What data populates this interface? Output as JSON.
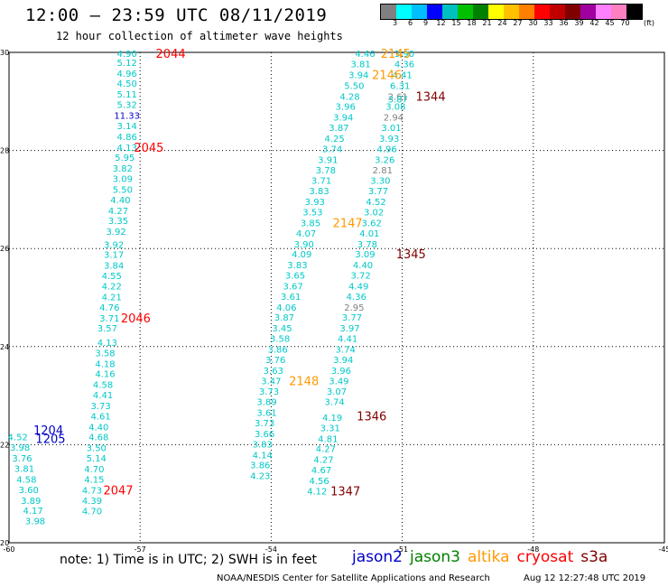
{
  "header": {
    "title": "12:00 – 23:59 UTC 08/11/2019",
    "subtitle": "12 hour collection of altimeter wave heights"
  },
  "legend": {
    "colors": [
      "#808080",
      "#00ffff",
      "#00bfff",
      "#0000ff",
      "#00c0c0",
      "#00c000",
      "#008000",
      "#ffff00",
      "#ffc000",
      "#ff8000",
      "#ff0000",
      "#c00000",
      "#800000",
      "#a000a0",
      "#ff80ff",
      "#ff80c0",
      "#000000"
    ],
    "labels": [
      "3",
      "6",
      "9",
      "12",
      "15",
      "18",
      "21",
      "24",
      "27",
      "30",
      "33",
      "36",
      "39",
      "42",
      "45",
      "70"
    ],
    "unit": "(ft)"
  },
  "axes": {
    "lon_labels": [
      "-60",
      "-57",
      "-54",
      "-51",
      "-48",
      "-45"
    ],
    "lat_labels": [
      "30",
      "28",
      "26",
      "24",
      "22",
      "20"
    ]
  },
  "tracks": [
    {
      "name": "track-a",
      "color": "#00c8c8",
      "points": [
        {
          "lon": -57.3,
          "lat": 29.98,
          "v": "4.90"
        },
        {
          "lon": -57.3,
          "lat": 29.8,
          "v": "5.12"
        },
        {
          "lon": -57.3,
          "lat": 29.58,
          "v": "4.96"
        },
        {
          "lon": -57.3,
          "lat": 29.37,
          "v": "4.50"
        },
        {
          "lon": -57.3,
          "lat": 29.15,
          "v": "5.11"
        },
        {
          "lon": -57.3,
          "lat": 28.94,
          "v": "5.32"
        },
        {
          "lon": -57.3,
          "lat": 28.72,
          "v": "11.33",
          "c": "#0000c8"
        },
        {
          "lon": -57.3,
          "lat": 28.51,
          "v": "3.14"
        },
        {
          "lon": -57.3,
          "lat": 28.29,
          "v": "4.86"
        },
        {
          "lon": -57.3,
          "lat": 28.07,
          "v": "4.13"
        },
        {
          "lon": -57.35,
          "lat": 27.86,
          "v": "5.95"
        },
        {
          "lon": -57.4,
          "lat": 27.64,
          "v": "3.82"
        },
        {
          "lon": -57.4,
          "lat": 27.43,
          "v": "3.09"
        },
        {
          "lon": -57.4,
          "lat": 27.21,
          "v": "5.50"
        },
        {
          "lon": -57.45,
          "lat": 27.0,
          "v": "4.40"
        },
        {
          "lon": -57.5,
          "lat": 26.78,
          "v": "4.27"
        },
        {
          "lon": -57.5,
          "lat": 26.57,
          "v": "3.35"
        },
        {
          "lon": -57.55,
          "lat": 26.35,
          "v": "3.92"
        },
        {
          "lon": -57.6,
          "lat": 26.09,
          "v": "3.92"
        },
        {
          "lon": -57.6,
          "lat": 25.88,
          "v": "3.17"
        },
        {
          "lon": -57.6,
          "lat": 25.66,
          "v": "3.84"
        },
        {
          "lon": -57.65,
          "lat": 25.45,
          "v": "4.55"
        },
        {
          "lon": -57.65,
          "lat": 25.24,
          "v": "4.22"
        },
        {
          "lon": -57.65,
          "lat": 25.02,
          "v": "4.21"
        },
        {
          "lon": -57.7,
          "lat": 24.81,
          "v": "4.76"
        },
        {
          "lon": -57.7,
          "lat": 24.59,
          "v": "3.71"
        },
        {
          "lon": -57.75,
          "lat": 24.38,
          "v": "3.57"
        },
        {
          "lon": -57.75,
          "lat": 24.09,
          "v": "4.13"
        },
        {
          "lon": -57.8,
          "lat": 23.88,
          "v": "3.58"
        },
        {
          "lon": -57.8,
          "lat": 23.66,
          "v": "4.18"
        },
        {
          "lon": -57.8,
          "lat": 23.45,
          "v": "4.16"
        },
        {
          "lon": -57.85,
          "lat": 23.23,
          "v": "4.58"
        },
        {
          "lon": -57.85,
          "lat": 23.02,
          "v": "4.41"
        },
        {
          "lon": -57.9,
          "lat": 22.8,
          "v": "3.73"
        },
        {
          "lon": -57.9,
          "lat": 22.59,
          "v": "4.61"
        },
        {
          "lon": -57.95,
          "lat": 22.37,
          "v": "4.40"
        },
        {
          "lon": -57.95,
          "lat": 22.16,
          "v": "4.68"
        },
        {
          "lon": -58.0,
          "lat": 21.94,
          "v": "3.50"
        },
        {
          "lon": -58.0,
          "lat": 21.73,
          "v": "5.14"
        },
        {
          "lon": -58.05,
          "lat": 21.51,
          "v": "4.70"
        },
        {
          "lon": -58.05,
          "lat": 21.3,
          "v": "4.15"
        },
        {
          "lon": -58.1,
          "lat": 21.08,
          "v": "4.73"
        },
        {
          "lon": -58.1,
          "lat": 20.87,
          "v": "4.39"
        },
        {
          "lon": -58.1,
          "lat": 20.65,
          "v": "4.70"
        }
      ]
    },
    {
      "name": "track-b",
      "color": "#00c8c8",
      "points": [
        {
          "lon": -59.8,
          "lat": 22.16,
          "v": "4.52"
        },
        {
          "lon": -59.75,
          "lat": 21.95,
          "v": "3.98"
        },
        {
          "lon": -59.7,
          "lat": 21.73,
          "v": "3.76"
        },
        {
          "lon": -59.65,
          "lat": 21.52,
          "v": "3.81"
        },
        {
          "lon": -59.6,
          "lat": 21.3,
          "v": "4.58"
        },
        {
          "lon": -59.55,
          "lat": 21.09,
          "v": "3.60"
        },
        {
          "lon": -59.5,
          "lat": 20.87,
          "v": "3.89"
        },
        {
          "lon": -59.45,
          "lat": 20.66,
          "v": "4.17"
        },
        {
          "lon": -59.4,
          "lat": 20.45,
          "v": "3.98"
        }
      ]
    },
    {
      "name": "track-c",
      "color": "#00c8c8",
      "points": [
        {
          "lon": -51.85,
          "lat": 29.98,
          "v": "4.46"
        },
        {
          "lon": -51.95,
          "lat": 29.77,
          "v": "3.81"
        },
        {
          "lon": -52.0,
          "lat": 29.55,
          "v": "3.94"
        },
        {
          "lon": -52.1,
          "lat": 29.33,
          "v": "5.50"
        },
        {
          "lon": -52.2,
          "lat": 29.11,
          "v": "4.28"
        },
        {
          "lon": -52.3,
          "lat": 28.9,
          "v": "3.96"
        },
        {
          "lon": -52.35,
          "lat": 28.68,
          "v": "3.94"
        },
        {
          "lon": -52.45,
          "lat": 28.47,
          "v": "3.87"
        },
        {
          "lon": -52.55,
          "lat": 28.25,
          "v": "4.25"
        },
        {
          "lon": -52.6,
          "lat": 28.04,
          "v": "3.74"
        },
        {
          "lon": -52.7,
          "lat": 27.82,
          "v": "3.91"
        },
        {
          "lon": -52.75,
          "lat": 27.61,
          "v": "3.78"
        },
        {
          "lon": -52.85,
          "lat": 27.39,
          "v": "3.71"
        },
        {
          "lon": -52.9,
          "lat": 27.18,
          "v": "3.83"
        },
        {
          "lon": -53.0,
          "lat": 26.96,
          "v": "3.93"
        },
        {
          "lon": -53.05,
          "lat": 26.75,
          "v": "3.53"
        },
        {
          "lon": -53.1,
          "lat": 26.53,
          "v": "3.85"
        },
        {
          "lon": -53.2,
          "lat": 26.32,
          "v": "4.07"
        },
        {
          "lon": -53.25,
          "lat": 26.1,
          "v": "3.90"
        },
        {
          "lon": -53.3,
          "lat": 25.89,
          "v": "4.09"
        },
        {
          "lon": -53.4,
          "lat": 25.67,
          "v": "3.83"
        },
        {
          "lon": -53.45,
          "lat": 25.46,
          "v": "3.65"
        },
        {
          "lon": -53.5,
          "lat": 25.24,
          "v": "3.67"
        },
        {
          "lon": -53.55,
          "lat": 25.03,
          "v": "3.61"
        },
        {
          "lon": -53.65,
          "lat": 24.81,
          "v": "4.06"
        },
        {
          "lon": -53.7,
          "lat": 24.6,
          "v": "3.87"
        },
        {
          "lon": -53.75,
          "lat": 24.38,
          "v": "3.45"
        },
        {
          "lon": -53.8,
          "lat": 24.17,
          "v": "3.58"
        },
        {
          "lon": -53.85,
          "lat": 23.95,
          "v": "3.86"
        },
        {
          "lon": -53.9,
          "lat": 23.74,
          "v": "3.76"
        },
        {
          "lon": -53.95,
          "lat": 23.52,
          "v": "3.63"
        },
        {
          "lon": -54.0,
          "lat": 23.31,
          "v": "3.47"
        },
        {
          "lon": -54.05,
          "lat": 23.09,
          "v": "3.73"
        },
        {
          "lon": -54.1,
          "lat": 22.88,
          "v": "3.89"
        },
        {
          "lon": -54.1,
          "lat": 22.66,
          "v": "3.61"
        },
        {
          "lon": -54.15,
          "lat": 22.45,
          "v": "3.73"
        },
        {
          "lon": -54.15,
          "lat": 22.23,
          "v": "3.66"
        },
        {
          "lon": -54.2,
          "lat": 22.02,
          "v": "3.83"
        },
        {
          "lon": -54.2,
          "lat": 21.8,
          "v": "4.14"
        },
        {
          "lon": -54.25,
          "lat": 21.59,
          "v": "3.86"
        },
        {
          "lon": -54.25,
          "lat": 21.37,
          "v": "4.23"
        }
      ]
    },
    {
      "name": "track-d",
      "color": "#00c8c8",
      "points": [
        {
          "lon": -50.95,
          "lat": 29.98,
          "v": "3.90"
        },
        {
          "lon": -50.95,
          "lat": 29.77,
          "v": "4.36"
        },
        {
          "lon": -51.0,
          "lat": 29.55,
          "v": "4.41"
        },
        {
          "lon": -51.05,
          "lat": 29.33,
          "v": "6.31"
        },
        {
          "lon": -51.1,
          "lat": 29.11,
          "v": "2.61",
          "c": "#808080"
        },
        {
          "lon": -51.1,
          "lat": 29.05,
          "v": "3.87"
        },
        {
          "lon": -51.15,
          "lat": 28.9,
          "v": "3.08"
        },
        {
          "lon": -51.2,
          "lat": 28.68,
          "v": "2.94",
          "c": "#808080"
        },
        {
          "lon": -51.25,
          "lat": 28.47,
          "v": "3.01"
        },
        {
          "lon": -51.3,
          "lat": 28.25,
          "v": "3.93"
        },
        {
          "lon": -51.35,
          "lat": 28.04,
          "v": "4.96"
        },
        {
          "lon": -51.4,
          "lat": 27.82,
          "v": "3.26"
        },
        {
          "lon": -51.45,
          "lat": 27.61,
          "v": "2.81",
          "c": "#808080"
        },
        {
          "lon": -51.5,
          "lat": 27.39,
          "v": "3.30"
        },
        {
          "lon": -51.55,
          "lat": 27.18,
          "v": "3.77"
        },
        {
          "lon": -51.6,
          "lat": 26.96,
          "v": "4.52"
        },
        {
          "lon": -51.65,
          "lat": 26.75,
          "v": "3.02"
        },
        {
          "lon": -51.7,
          "lat": 26.53,
          "v": "3.62"
        },
        {
          "lon": -51.75,
          "lat": 26.32,
          "v": "4.01"
        },
        {
          "lon": -51.8,
          "lat": 26.1,
          "v": "3.78"
        },
        {
          "lon": -51.85,
          "lat": 25.89,
          "v": "3.09"
        },
        {
          "lon": -51.9,
          "lat": 25.67,
          "v": "4.40"
        },
        {
          "lon": -51.95,
          "lat": 25.46,
          "v": "3.72"
        },
        {
          "lon": -52.0,
          "lat": 25.24,
          "v": "4.49"
        },
        {
          "lon": -52.05,
          "lat": 25.03,
          "v": "4.36"
        },
        {
          "lon": -52.1,
          "lat": 24.81,
          "v": "2.95",
          "c": "#808080"
        },
        {
          "lon": -52.15,
          "lat": 24.6,
          "v": "3.77"
        },
        {
          "lon": -52.2,
          "lat": 24.38,
          "v": "3.97"
        },
        {
          "lon": -52.25,
          "lat": 24.17,
          "v": "4.41"
        },
        {
          "lon": -52.3,
          "lat": 23.95,
          "v": "3.74"
        },
        {
          "lon": -52.35,
          "lat": 23.74,
          "v": "3.94"
        },
        {
          "lon": -52.4,
          "lat": 23.52,
          "v": "3.96"
        },
        {
          "lon": -52.45,
          "lat": 23.31,
          "v": "3.49"
        },
        {
          "lon": -52.5,
          "lat": 23.09,
          "v": "3.07"
        },
        {
          "lon": -52.55,
          "lat": 22.88,
          "v": "3.74"
        },
        {
          "lon": -52.6,
          "lat": 22.56,
          "v": "4.19"
        },
        {
          "lon": -52.65,
          "lat": 22.35,
          "v": "3.31"
        },
        {
          "lon": -52.7,
          "lat": 22.13,
          "v": "4.81"
        },
        {
          "lon": -52.75,
          "lat": 21.92,
          "v": "4.27"
        },
        {
          "lon": -52.8,
          "lat": 21.7,
          "v": "4.27"
        },
        {
          "lon": -52.85,
          "lat": 21.49,
          "v": "4.67"
        },
        {
          "lon": -52.9,
          "lat": 21.27,
          "v": "4.56"
        },
        {
          "lon": -52.95,
          "lat": 21.06,
          "v": "4.12"
        }
      ]
    }
  ],
  "time_labels": [
    {
      "lon": -56.3,
      "lat": 29.98,
      "t": "2044",
      "c": "#ff0000"
    },
    {
      "lon": -56.8,
      "lat": 28.07,
      "t": "2045",
      "c": "#ff0000"
    },
    {
      "lon": -57.1,
      "lat": 24.59,
      "t": "2046",
      "c": "#ff0000"
    },
    {
      "lon": -57.5,
      "lat": 21.08,
      "t": "2047",
      "c": "#ff0000"
    },
    {
      "lon": -59.1,
      "lat": 22.3,
      "t": "1204",
      "c": "#0000c8"
    },
    {
      "lon": -59.05,
      "lat": 22.13,
      "t": "1205",
      "c": "#0000c8"
    },
    {
      "lon": -51.15,
      "lat": 29.98,
      "t": "2145",
      "c": "#ff9900"
    },
    {
      "lon": -51.35,
      "lat": 29.55,
      "t": "2146",
      "c": "#ff9900"
    },
    {
      "lon": -52.25,
      "lat": 26.53,
      "t": "2147",
      "c": "#ff9900"
    },
    {
      "lon": -53.25,
      "lat": 23.31,
      "t": "2148",
      "c": "#ff9900"
    },
    {
      "lon": -50.35,
      "lat": 29.11,
      "t": "1344",
      "c": "#800000"
    },
    {
      "lon": -50.8,
      "lat": 25.89,
      "t": "1345",
      "c": "#800000"
    },
    {
      "lon": -51.7,
      "lat": 22.59,
      "t": "1346",
      "c": "#800000"
    },
    {
      "lon": -52.3,
      "lat": 21.06,
      "t": "1347",
      "c": "#800000"
    }
  ],
  "footer": {
    "note": "note: 1) Time is in UTC; 2) SWH is in feet",
    "satellites": [
      {
        "name": "jason2",
        "color": "#0000c8"
      },
      {
        "name": "jason3",
        "color": "#008000"
      },
      {
        "name": "altika",
        "color": "#ff9900"
      },
      {
        "name": "cryosat",
        "color": "#ff0000"
      },
      {
        "name": "s3a",
        "color": "#800000"
      }
    ],
    "credit": "NOAA/NESDIS Center for Satellite Applications and Research",
    "timestamp": "Aug 12 12:27:48 UTC 2019"
  }
}
